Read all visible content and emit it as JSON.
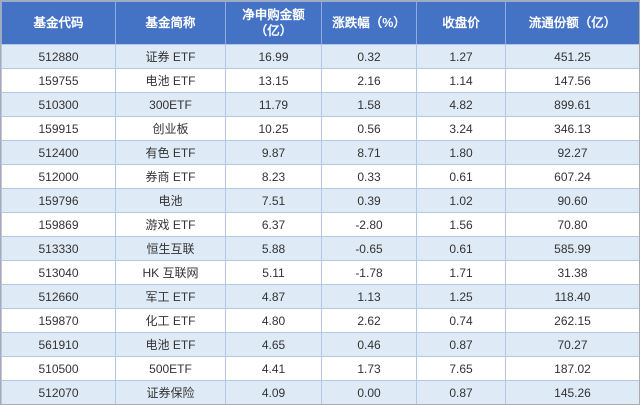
{
  "colors": {
    "header_bg": "#4472c4",
    "header_text": "#ffffff",
    "band_row_bg": "#deebf7",
    "plain_row_bg": "#ffffff",
    "grid_line": "#b4c7e7",
    "outer_border": "#ababab",
    "body_text": "#323232"
  },
  "chart_data": {
    "type": "table",
    "title": "",
    "columns": [
      {
        "label": "基金代码",
        "sub": ""
      },
      {
        "label": "基金简称",
        "sub": ""
      },
      {
        "label": "净申购金额",
        "sub": "（亿）"
      },
      {
        "label": "涨跌幅（%）",
        "sub": ""
      },
      {
        "label": "收盘价",
        "sub": ""
      },
      {
        "label": "流通份额（亿）",
        "sub": ""
      }
    ],
    "rows": [
      [
        "512880",
        "证券 ETF",
        "16.99",
        "0.32",
        "1.27",
        "451.25"
      ],
      [
        "159755",
        "电池 ETF",
        "13.15",
        "2.16",
        "1.14",
        "147.56"
      ],
      [
        "510300",
        "300ETF",
        "11.79",
        "1.58",
        "4.82",
        "899.61"
      ],
      [
        "159915",
        "创业板",
        "10.25",
        "0.56",
        "3.24",
        "346.13"
      ],
      [
        "512400",
        "有色 ETF",
        "9.87",
        "8.71",
        "1.80",
        "92.27"
      ],
      [
        "512000",
        "券商 ETF",
        "8.23",
        "0.33",
        "0.61",
        "607.24"
      ],
      [
        "159796",
        "电池",
        "7.51",
        "0.39",
        "1.02",
        "90.60"
      ],
      [
        "159869",
        "游戏 ETF",
        "6.37",
        "-2.80",
        "1.56",
        "70.80"
      ],
      [
        "513330",
        "恒生互联",
        "5.88",
        "-0.65",
        "0.61",
        "585.99"
      ],
      [
        "513040",
        "HK 互联网",
        "5.11",
        "-1.78",
        "1.71",
        "31.38"
      ],
      [
        "512660",
        "军工 ETF",
        "4.87",
        "1.13",
        "1.25",
        "118.40"
      ],
      [
        "159870",
        "化工 ETF",
        "4.80",
        "2.62",
        "0.74",
        "262.15"
      ],
      [
        "561910",
        "电池 ETF",
        "4.65",
        "0.46",
        "0.87",
        "70.27"
      ],
      [
        "510500",
        "500ETF",
        "4.41",
        "1.73",
        "7.65",
        "187.02"
      ],
      [
        "512070",
        "证券保险",
        "4.09",
        "0.00",
        "0.87",
        "145.26"
      ]
    ]
  }
}
